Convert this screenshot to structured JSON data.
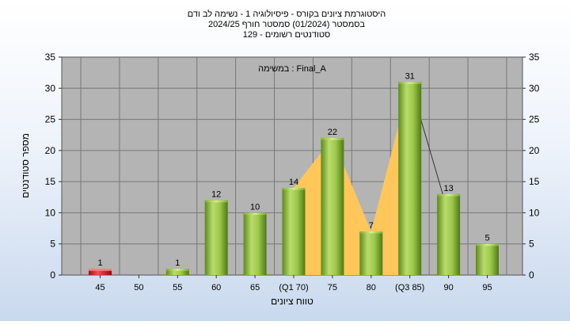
{
  "chart_data": {
    "type": "bar",
    "title_lines": [
      "היסטוגרמת ציונים בקורס - פיסיולוגיה 1 - נשימה לב ודם",
      "בסמסטר  (01/2024)  סמסטר חורף 2024/25",
      "סטודנטים רשומים - 129"
    ],
    "xlabel": "טווח ציונים",
    "ylabel": "מספר סטודנטים",
    "legend_text": "במשימה : Final_A",
    "categories": [
      "45",
      "50",
      "55",
      "60",
      "65",
      "(Q1 70)",
      "75",
      "80",
      "(Q3 85)",
      "90",
      "95"
    ],
    "values": [
      1,
      0,
      1,
      12,
      10,
      14,
      22,
      7,
      31,
      13,
      5
    ],
    "value_labels": [
      "1",
      "",
      "1",
      "12",
      "10",
      "14",
      "22",
      "7",
      "31",
      "13",
      "5"
    ],
    "highlight_category": "45",
    "ylim": [
      0,
      35
    ],
    "yticks": [
      0,
      5,
      10,
      15,
      20,
      25,
      30,
      35
    ],
    "grid": true,
    "iqr_band": {
      "from_category": "(Q1 70)",
      "to_category": "(Q3 85)"
    },
    "colors": {
      "bar": "#8fbf3c",
      "bar_highlight": "#d42020",
      "band": "#ffc75a",
      "plot_background": "#b4b4b4"
    }
  }
}
